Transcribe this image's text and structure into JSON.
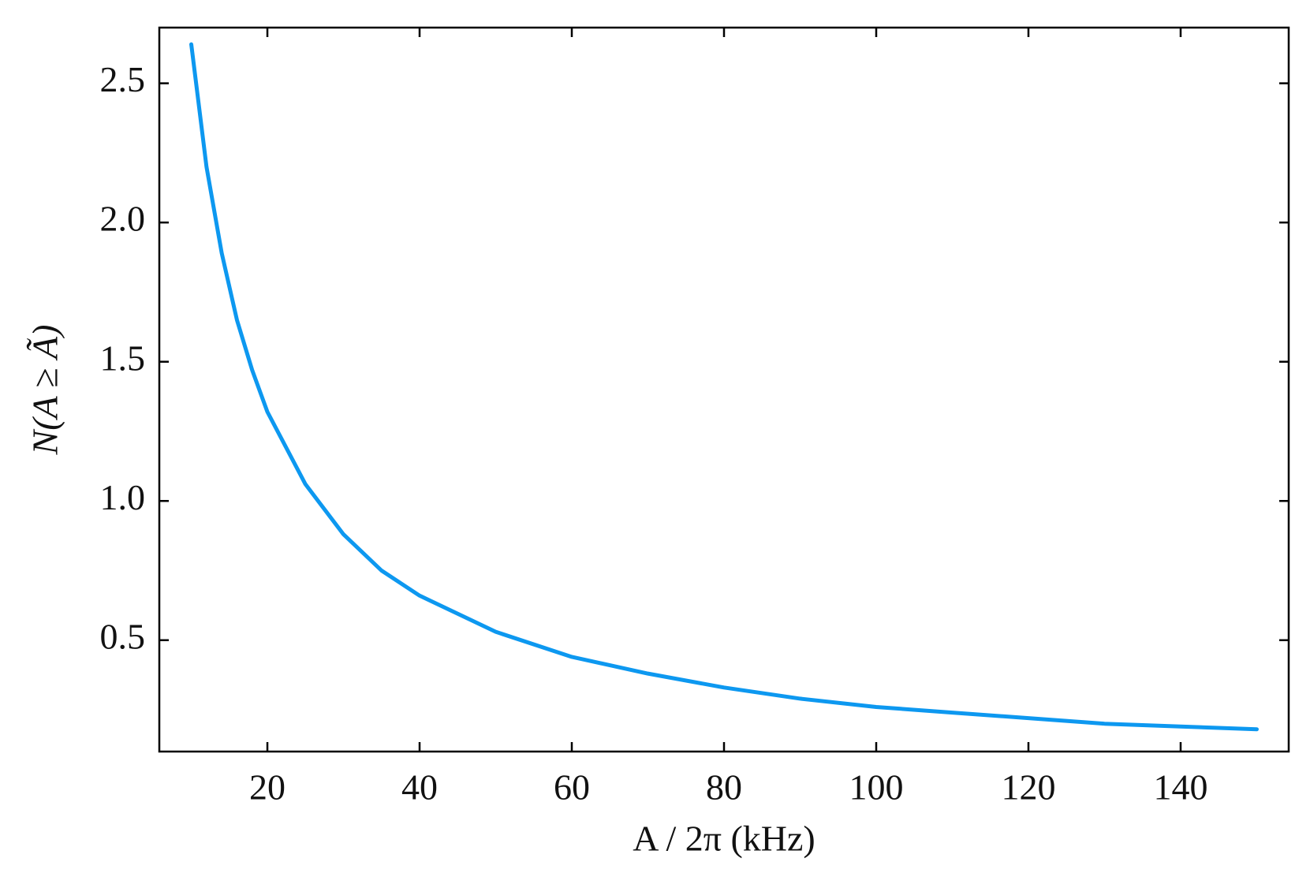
{
  "chart_data": {
    "type": "line",
    "x_label": "A / 2π (kHz)",
    "y_label": "N(A ≥ Ã)",
    "x": [
      10,
      12,
      14,
      16,
      18,
      20,
      25,
      30,
      35,
      40,
      50,
      60,
      70,
      80,
      90,
      100,
      110,
      120,
      130,
      140,
      150
    ],
    "series": [
      {
        "color": "#0d98f0",
        "values": [
          2.64,
          2.2,
          1.89,
          1.65,
          1.47,
          1.32,
          1.06,
          0.88,
          0.75,
          0.66,
          0.53,
          0.44,
          0.38,
          0.33,
          0.29,
          0.26,
          0.24,
          0.22,
          0.2,
          0.19,
          0.18
        ]
      }
    ],
    "xlim": [
      5.8,
      154.2
    ],
    "ylim": [
      0.1,
      2.7
    ],
    "xticks": [
      20,
      40,
      60,
      80,
      100,
      120,
      140
    ],
    "yticks": [
      0.5,
      {
        "value": 1,
        "label": "1.0"
      },
      1.5,
      {
        "value": 2,
        "label": "2.0"
      },
      2.5
    ],
    "grid": false
  }
}
